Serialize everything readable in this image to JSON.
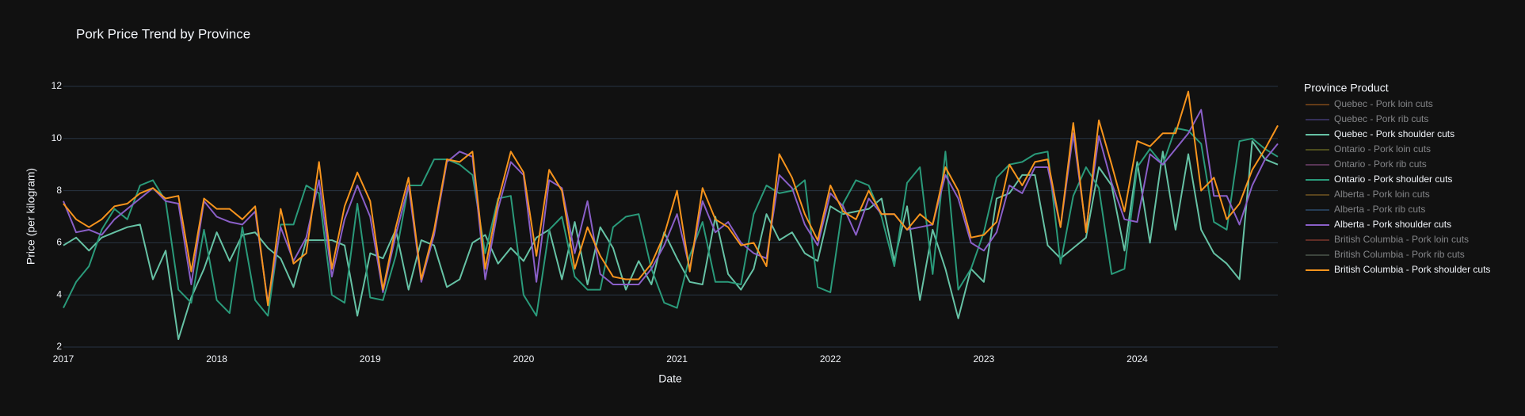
{
  "chart_data": {
    "type": "line",
    "title": "Pork Price Trend by Province",
    "xlabel": "Date",
    "ylabel": "Price (per kilogram)",
    "legend_title": "Province Product",
    "xlim": [
      "2017-01",
      "2024-12"
    ],
    "xticks": [
      "2017",
      "2018",
      "2019",
      "2020",
      "2021",
      "2022",
      "2023",
      "2024"
    ],
    "ylim": [
      2,
      12
    ],
    "yticks": [
      2,
      4,
      6,
      8,
      10,
      12
    ],
    "grid": true,
    "legend": "right",
    "x": [
      "2017-01",
      "2017-02",
      "2017-03",
      "2017-04",
      "2017-05",
      "2017-06",
      "2017-07",
      "2017-08",
      "2017-09",
      "2017-10",
      "2017-11",
      "2017-12",
      "2018-01",
      "2018-02",
      "2018-03",
      "2018-04",
      "2018-05",
      "2018-06",
      "2018-07",
      "2018-08",
      "2018-09",
      "2018-10",
      "2018-11",
      "2018-12",
      "2019-01",
      "2019-02",
      "2019-03",
      "2019-04",
      "2019-05",
      "2019-06",
      "2019-07",
      "2019-08",
      "2019-09",
      "2019-10",
      "2019-11",
      "2019-12",
      "2020-01",
      "2020-02",
      "2020-03",
      "2020-04",
      "2020-05",
      "2020-06",
      "2020-07",
      "2020-08",
      "2020-09",
      "2020-10",
      "2020-11",
      "2020-12",
      "2021-01",
      "2021-02",
      "2021-03",
      "2021-04",
      "2021-05",
      "2021-06",
      "2021-07",
      "2021-08",
      "2021-09",
      "2021-10",
      "2021-11",
      "2021-12",
      "2022-01",
      "2022-02",
      "2022-03",
      "2022-04",
      "2022-05",
      "2022-06",
      "2022-07",
      "2022-08",
      "2022-09",
      "2022-10",
      "2022-11",
      "2022-12",
      "2023-01",
      "2023-02",
      "2023-03",
      "2023-04",
      "2023-05",
      "2023-06",
      "2023-07",
      "2023-08",
      "2023-09",
      "2023-10",
      "2023-11",
      "2023-12",
      "2024-01",
      "2024-02",
      "2024-03",
      "2024-04",
      "2024-05",
      "2024-06",
      "2024-07",
      "2024-08",
      "2024-09",
      "2024-10",
      "2024-11",
      "2024-12"
    ],
    "series": [
      {
        "name": "Quebec - Pork loin cuts",
        "color": "#b5651d",
        "visible": false
      },
      {
        "name": "Quebec - Pork rib cuts",
        "color": "#5a4fa0",
        "visible": false
      },
      {
        "name": "Quebec - Pork shoulder cuts",
        "color": "#66c2a5",
        "visible": true,
        "values": [
          5.9,
          6.2,
          5.7,
          6.2,
          6.4,
          6.6,
          6.7,
          4.6,
          5.7,
          2.3,
          3.9,
          5.0,
          6.4,
          5.3,
          6.3,
          6.4,
          5.8,
          5.4,
          4.3,
          6.1,
          6.1,
          6.1,
          5.9,
          3.2,
          5.6,
          5.4,
          6.5,
          4.2,
          6.1,
          5.9,
          4.3,
          4.6,
          6.0,
          6.3,
          5.2,
          5.8,
          5.3,
          6.2,
          6.5,
          4.6,
          6.8,
          4.4,
          6.6,
          5.8,
          4.2,
          5.3,
          4.4,
          6.4,
          5.4,
          4.5,
          4.4,
          7.0,
          4.8,
          4.2,
          5.0,
          7.1,
          6.1,
          6.4,
          5.6,
          5.3,
          7.4,
          7.1,
          7.2,
          7.3,
          7.7,
          5.3,
          7.4,
          3.8,
          6.5,
          5.0,
          3.1,
          5.0,
          4.5,
          7.7,
          7.9,
          8.6,
          8.6,
          5.9,
          5.4,
          5.8,
          6.2,
          8.9,
          8.2,
          5.7,
          9.1,
          6.0,
          9.5,
          6.5,
          9.4,
          6.5,
          5.6,
          5.2,
          4.6,
          9.9,
          9.2,
          9.0
        ]
      },
      {
        "name": "Ontario - Pork loin cuts",
        "color": "#8a8a2a",
        "visible": false
      },
      {
        "name": "Ontario - Pork rib cuts",
        "color": "#a05a9a",
        "visible": false
      },
      {
        "name": "Ontario - Pork shoulder cuts",
        "color": "#2a9a7a",
        "visible": true,
        "values": [
          3.5,
          4.5,
          5.1,
          6.5,
          7.3,
          6.9,
          8.2,
          8.4,
          7.6,
          4.2,
          3.7,
          6.5,
          3.8,
          3.3,
          6.6,
          3.8,
          3.2,
          6.7,
          6.7,
          8.2,
          7.9,
          4.0,
          3.7,
          7.5,
          3.9,
          3.8,
          5.5,
          8.2,
          8.2,
          9.2,
          9.2,
          9.0,
          8.6,
          5.6,
          7.7,
          7.8,
          4.0,
          3.2,
          6.5,
          7.0,
          4.7,
          4.2,
          4.2,
          6.6,
          7.0,
          7.1,
          5.0,
          3.7,
          3.5,
          5.5,
          6.8,
          4.5,
          4.5,
          4.4,
          7.1,
          8.2,
          7.9,
          8.0,
          8.4,
          4.3,
          4.1,
          7.5,
          8.4,
          8.2,
          7.0,
          5.1,
          8.3,
          8.9,
          4.8,
          9.5,
          4.2,
          5.0,
          6.4,
          8.5,
          9.0,
          9.1,
          9.4,
          9.5,
          5.2,
          7.8,
          8.9,
          8.1,
          4.8,
          5.0,
          8.9,
          9.6,
          9.0,
          10.4,
          10.3,
          9.8,
          6.8,
          6.5,
          9.9,
          10.0,
          9.6,
          9.3
        ]
      },
      {
        "name": "Alberta - Pork loin cuts",
        "color": "#a0782a",
        "visible": false
      },
      {
        "name": "Alberta - Pork rib cuts",
        "color": "#3a6a9a",
        "visible": false
      },
      {
        "name": "Alberta - Pork shoulder cuts",
        "color": "#8a5fc8",
        "visible": true,
        "values": [
          7.6,
          6.4,
          6.5,
          6.3,
          6.9,
          7.3,
          7.7,
          8.1,
          7.6,
          7.5,
          4.4,
          7.6,
          7.0,
          6.8,
          6.7,
          7.2,
          3.7,
          6.6,
          5.3,
          6.2,
          8.4,
          4.7,
          6.9,
          8.2,
          7.0,
          4.1,
          6.3,
          8.2,
          4.5,
          6.3,
          9.1,
          9.5,
          9.3,
          4.6,
          7.3,
          9.1,
          8.6,
          4.5,
          8.4,
          8.1,
          5.6,
          7.6,
          4.8,
          4.4,
          4.4,
          4.4,
          5.0,
          5.9,
          7.1,
          5.0,
          7.6,
          6.4,
          6.8,
          6.0,
          5.6,
          5.4,
          8.6,
          8.1,
          6.7,
          5.9,
          7.9,
          7.4,
          6.3,
          7.7,
          7.1,
          7.1,
          6.5,
          6.6,
          6.7,
          8.6,
          7.7,
          6.0,
          5.7,
          6.4,
          8.2,
          7.9,
          8.9,
          8.9,
          6.6,
          10.2,
          6.5,
          10.1,
          8.3,
          6.9,
          6.8,
          9.4,
          9.0,
          9.6,
          10.2,
          11.1,
          7.8,
          7.8,
          6.7,
          8.2,
          9.2,
          9.8
        ]
      },
      {
        "name": "British Columbia - Pork loin cuts",
        "color": "#b04a3a",
        "visible": false
      },
      {
        "name": "British Columbia - Pork rib cuts",
        "color": "#6a7a6a",
        "visible": false
      },
      {
        "name": "British Columbia - Pork shoulder cuts",
        "color": "#f7941d",
        "visible": true,
        "values": [
          7.5,
          6.9,
          6.6,
          6.9,
          7.4,
          7.5,
          7.9,
          8.1,
          7.7,
          7.8,
          4.9,
          7.7,
          7.3,
          7.3,
          6.9,
          7.4,
          3.6,
          7.3,
          5.2,
          5.6,
          9.1,
          5.0,
          7.4,
          8.7,
          7.6,
          4.2,
          6.6,
          8.5,
          4.6,
          6.5,
          9.2,
          9.1,
          9.5,
          5.0,
          7.6,
          9.5,
          8.7,
          5.5,
          8.8,
          8.0,
          5.0,
          6.6,
          5.5,
          4.7,
          4.6,
          4.6,
          5.2,
          6.3,
          8.0,
          4.9,
          8.1,
          6.9,
          6.6,
          5.9,
          6.0,
          5.1,
          9.4,
          8.5,
          7.1,
          6.1,
          8.2,
          7.2,
          6.9,
          8.0,
          7.1,
          7.1,
          6.5,
          7.1,
          6.7,
          8.9,
          8.0,
          6.2,
          6.3,
          6.8,
          9.0,
          8.2,
          9.1,
          9.2,
          6.6,
          10.6,
          6.4,
          10.7,
          9.0,
          7.2,
          9.9,
          9.7,
          10.2,
          10.2,
          11.8,
          8.0,
          8.5,
          6.9,
          7.5,
          8.8,
          9.6,
          10.5
        ]
      }
    ]
  }
}
